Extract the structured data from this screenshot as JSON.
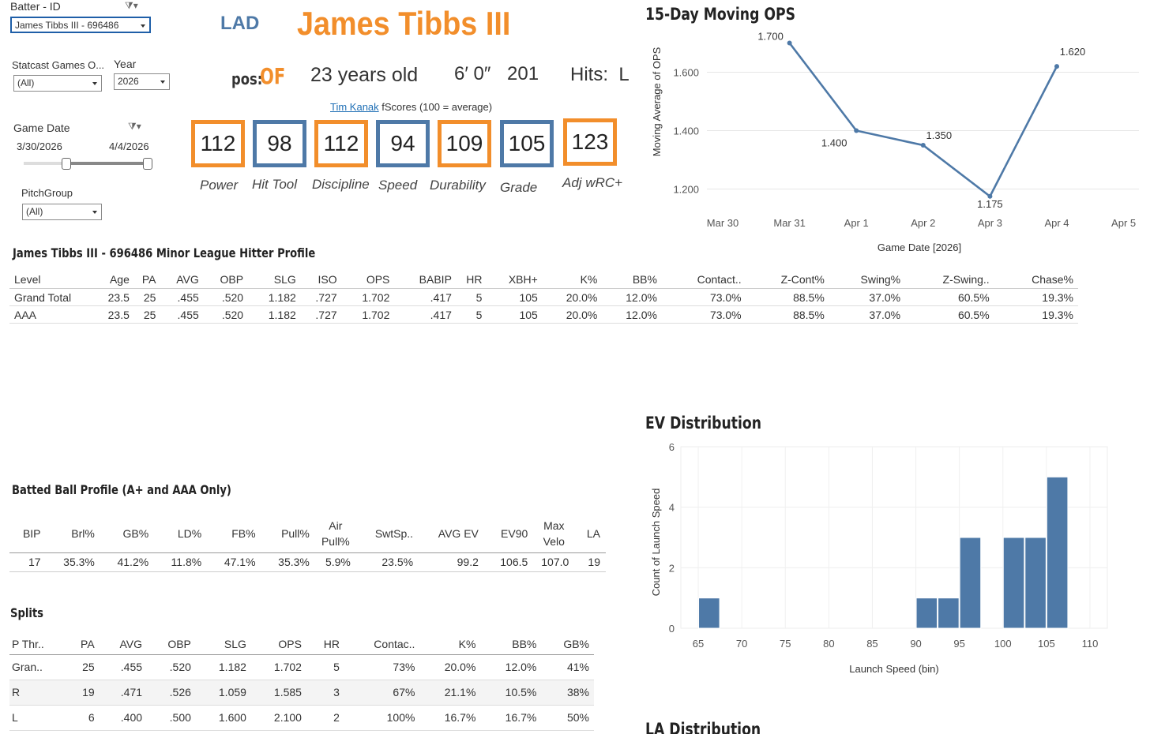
{
  "filters": {
    "batter_label": "Batter - ID",
    "batter_value": "James Tibbs III - 696486",
    "statcast_label": "Statcast Games O...",
    "statcast_value": "(All)",
    "year_label": "Year",
    "year_value": "2026",
    "game_date_label": "Game Date",
    "date_start": "3/30/2026",
    "date_end": "4/4/2026",
    "pitchgroup_label": "PitchGroup",
    "pitchgroup_value": "(All)"
  },
  "player": {
    "team": "LAD",
    "name": "James Tibbs III",
    "pos_label": "pos:",
    "pos": "OF",
    "age": "23 years old",
    "height": "6′ 0″",
    "weight": "201",
    "hits": "Hits:  L",
    "fscores_author": "Tim Kanak",
    "fscores_note": " fScores (100 = average)"
  },
  "scores": [
    {
      "value": "112",
      "label": "Power",
      "color": "orange"
    },
    {
      "value": "98",
      "label": "Hit Tool",
      "color": "blue"
    },
    {
      "value": "112",
      "label": "Discipline",
      "color": "orange"
    },
    {
      "value": "94",
      "label": "Speed",
      "color": "blue"
    },
    {
      "value": "109",
      "label": "Durability",
      "color": "orange"
    },
    {
      "value": "105",
      "label": "Grade",
      "color": "blue"
    },
    {
      "value": "123",
      "label": "Adj wRC+",
      "color": "orange"
    }
  ],
  "profile": {
    "title": "James Tibbs III - 696486 Minor League Hitter Profile",
    "headers": [
      "Level",
      "Age",
      "PA",
      "AVG",
      "OBP",
      "SLG",
      "ISO",
      "OPS",
      "BABIP",
      "HR",
      "XBH+",
      "K%",
      "BB%",
      "Contact..",
      "Z-Cont%",
      "Swing%",
      "Z-Swing..",
      "Chase%"
    ],
    "rows": [
      [
        "Grand Total",
        "23.5",
        "25",
        ".455",
        ".520",
        "1.182",
        ".727",
        "1.702",
        ".417",
        "5",
        "105",
        "20.0%",
        "12.0%",
        "73.0%",
        "88.5%",
        "37.0%",
        "60.5%",
        "19.3%"
      ],
      [
        "AAA",
        "23.5",
        "25",
        ".455",
        ".520",
        "1.182",
        ".727",
        "1.702",
        ".417",
        "5",
        "105",
        "20.0%",
        "12.0%",
        "73.0%",
        "88.5%",
        "37.0%",
        "60.5%",
        "19.3%"
      ]
    ]
  },
  "batted": {
    "title": "Batted Ball Profile (A+ and AAA Only)",
    "headers": [
      "BIP",
      "Brl%",
      "GB%",
      "LD%",
      "FB%",
      "Pull%",
      "Air Pull%",
      "SwtSp..",
      "AVG EV",
      "EV90",
      "Max Velo",
      "LA"
    ],
    "row": [
      "17",
      "35.3%",
      "41.2%",
      "11.8%",
      "47.1%",
      "35.3%",
      "5.9%",
      "23.5%",
      "99.2",
      "106.5",
      "107.0",
      "19"
    ]
  },
  "splits": {
    "title": "Splits",
    "headers": [
      "P Thr..",
      "PA",
      "AVG",
      "OBP",
      "SLG",
      "OPS",
      "HR",
      "Contac..",
      "K%",
      "BB%",
      "GB%"
    ],
    "rows": [
      [
        "Gran..",
        "25",
        ".455",
        ".520",
        "1.182",
        "1.702",
        "5",
        "73%",
        "20.0%",
        "12.0%",
        "41%"
      ],
      [
        "R",
        "19",
        ".471",
        ".526",
        "1.059",
        "1.585",
        "3",
        "67%",
        "21.1%",
        "10.5%",
        "38%"
      ],
      [
        "L",
        "6",
        ".400",
        ".500",
        "1.600",
        "2.100",
        "2",
        "100%",
        "16.7%",
        "16.7%",
        "50%"
      ]
    ]
  },
  "chart_data": [
    {
      "type": "line",
      "title": "15-Day Moving OPS",
      "xlabel": "Game Date [2026]",
      "ylabel": "Moving Average of OPS",
      "x_ticks": [
        "Mar 30",
        "Mar 31",
        "Apr 1",
        "Apr 2",
        "Apr 3",
        "Apr 4",
        "Apr 5"
      ],
      "x": [
        "Mar 31",
        "Apr 1",
        "Apr 2",
        "Apr 3",
        "Apr 4"
      ],
      "values": [
        1.7,
        1.4,
        1.35,
        1.175,
        1.62
      ],
      "data_labels": [
        "1.700",
        "1.400",
        "1.350",
        "1.175",
        "1.620"
      ],
      "y_ticks": [
        "1.200",
        "1.400",
        "1.600"
      ],
      "ylim": [
        1.15,
        1.75
      ],
      "color": "#4e79a7"
    },
    {
      "type": "bar",
      "title": "EV Distribution",
      "xlabel": "Launch Speed (bin)",
      "ylabel": "Count of Launch Speed",
      "bins": [
        65,
        90,
        92.5,
        95,
        100,
        102.5,
        105
      ],
      "bin_width": 2.5,
      "values": [
        1,
        1,
        1,
        3,
        3,
        3,
        5
      ],
      "x_ticks": [
        "65",
        "70",
        "75",
        "80",
        "85",
        "90",
        "95",
        "100",
        "105",
        "110"
      ],
      "xlim": [
        63,
        112
      ],
      "y_ticks": [
        "0",
        "2",
        "4",
        "6"
      ],
      "ylim": [
        0,
        6
      ],
      "color": "#4e79a7"
    }
  ],
  "la_title": "LA Distribution"
}
